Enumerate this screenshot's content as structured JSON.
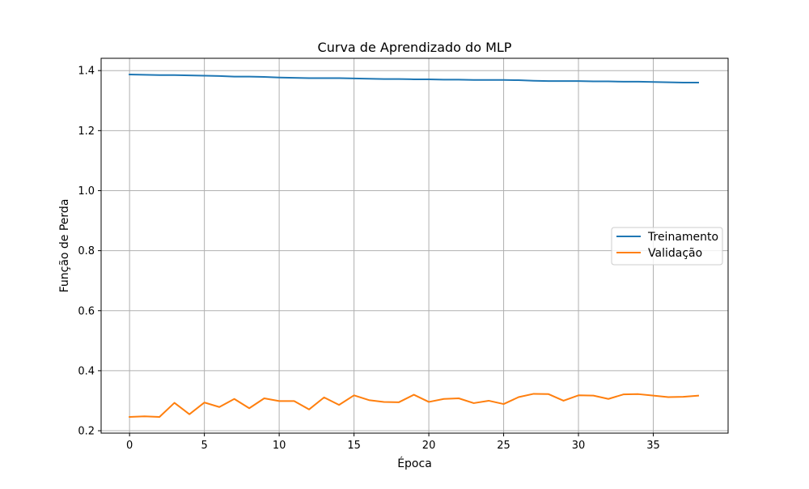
{
  "chart_data": {
    "type": "line",
    "title": "Curva de Aprendizado do MLP",
    "xlabel": "Época",
    "ylabel": "Função de Perda",
    "xlim": [
      -1.9,
      40.0
    ],
    "ylim": [
      0.192,
      1.441
    ],
    "xticks": [
      0,
      5,
      10,
      15,
      20,
      25,
      30,
      35
    ],
    "xtick_labels": [
      "0",
      "5",
      "10",
      "15",
      "20",
      "25",
      "30",
      "35"
    ],
    "yticks": [
      0.2,
      0.4,
      0.6,
      0.8,
      1.0,
      1.2,
      1.4
    ],
    "ytick_labels": [
      "0.2",
      "0.4",
      "0.6",
      "0.8",
      "1.0",
      "1.2",
      "1.4"
    ],
    "grid": true,
    "legend_position": "center-right",
    "x": [
      0,
      1,
      2,
      3,
      4,
      5,
      6,
      7,
      8,
      9,
      10,
      11,
      12,
      13,
      14,
      15,
      16,
      17,
      18,
      19,
      20,
      21,
      22,
      23,
      24,
      25,
      26,
      27,
      28,
      29,
      30,
      31,
      32,
      33,
      34,
      35,
      36,
      37,
      38
    ],
    "series": [
      {
        "name": "Treinamento",
        "color": "#1f77b4",
        "values": [
          1.387,
          1.386,
          1.385,
          1.385,
          1.384,
          1.383,
          1.382,
          1.38,
          1.38,
          1.379,
          1.377,
          1.376,
          1.375,
          1.375,
          1.375,
          1.374,
          1.373,
          1.372,
          1.372,
          1.371,
          1.371,
          1.37,
          1.37,
          1.369,
          1.369,
          1.369,
          1.368,
          1.366,
          1.365,
          1.365,
          1.365,
          1.364,
          1.364,
          1.363,
          1.363,
          1.362,
          1.361,
          1.36,
          1.36
        ]
      },
      {
        "name": "Validação",
        "color": "#ff7f0e",
        "values": [
          0.246,
          0.248,
          0.246,
          0.293,
          0.255,
          0.294,
          0.279,
          0.306,
          0.275,
          0.308,
          0.299,
          0.299,
          0.271,
          0.311,
          0.286,
          0.318,
          0.302,
          0.296,
          0.295,
          0.32,
          0.296,
          0.306,
          0.308,
          0.292,
          0.3,
          0.289,
          0.312,
          0.323,
          0.322,
          0.3,
          0.318,
          0.317,
          0.306,
          0.321,
          0.322,
          0.317,
          0.312,
          0.313,
          0.317
        ]
      }
    ]
  }
}
